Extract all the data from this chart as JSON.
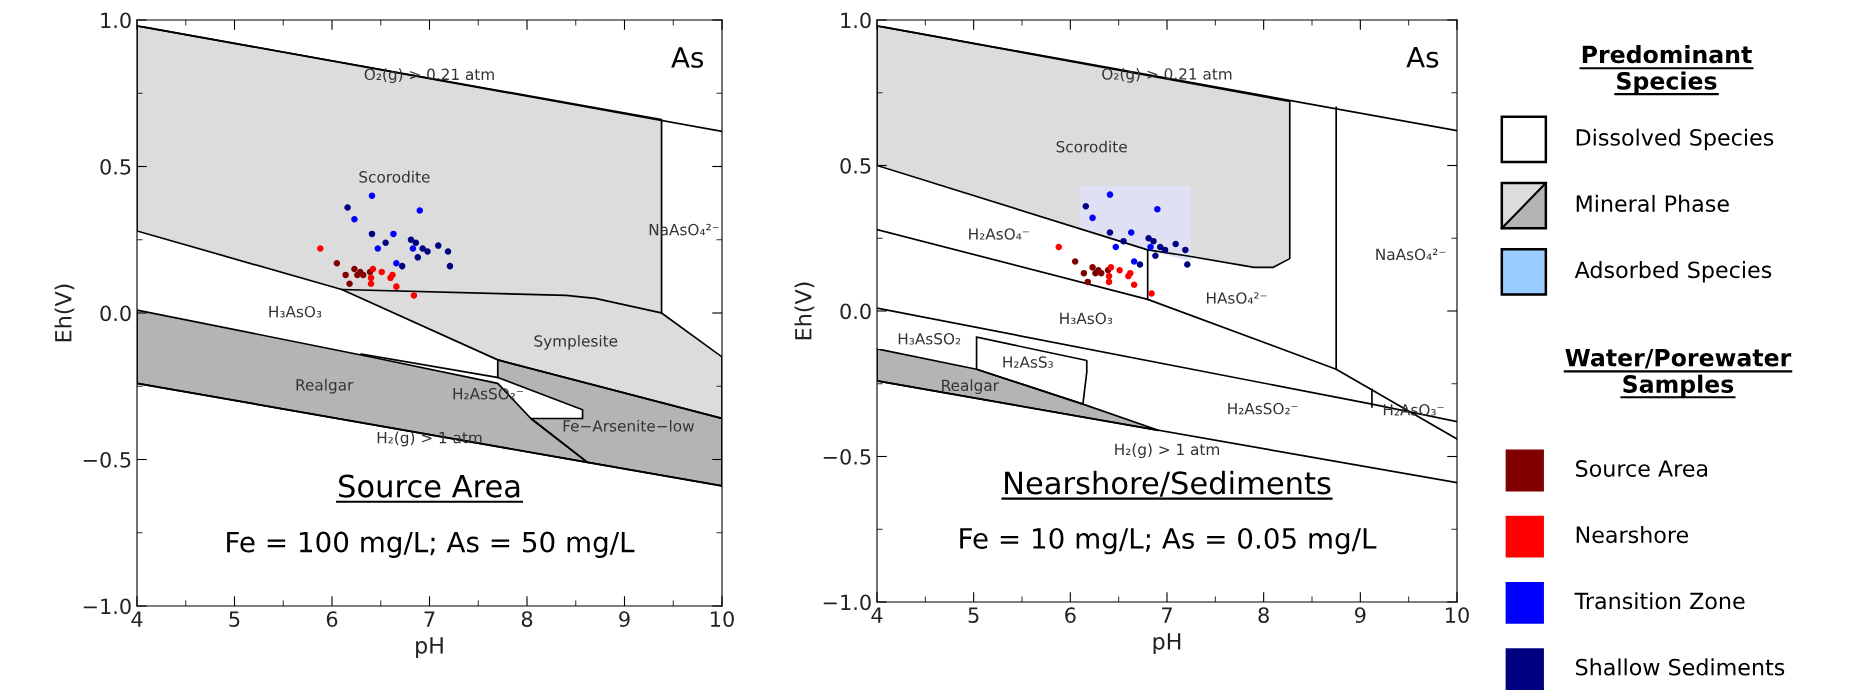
{
  "chart_data": [
    {
      "type": "scatter",
      "subtitle": "Source Area",
      "xlabel": "pH",
      "ylabel": "Eh(V)",
      "xlim": [
        4,
        10
      ],
      "ylim": [
        -1,
        1
      ],
      "xticks": [
        4,
        5,
        6,
        7,
        8,
        9,
        10
      ],
      "yticks": [
        {
          "value": -1,
          "label": "−1.0"
        },
        {
          "value": -0.5,
          "label": "−0.5"
        },
        {
          "value": 0,
          "label": "0.0"
        },
        {
          "value": 0.5,
          "label": "0.5"
        },
        {
          "value": 1,
          "label": "1.0"
        }
      ],
      "grid": false,
      "legend": false,
      "series": [
        {
          "type": "area",
          "color": "#dcdcdc",
          "x": [
            4,
            9.38,
            9.38,
            10,
            10,
            7.7,
            6.1,
            4
          ],
          "values": [
            0.98,
            0.66,
            0.0,
            -0.15,
            -0.36,
            -0.16,
            0.08,
            0.28
          ]
        },
        {
          "type": "area",
          "color": "#b4b4b4",
          "x": [
            7.7,
            10,
            10,
            8.62,
            8.04,
            8.57,
            8.57,
            7.7
          ],
          "values": [
            -0.16,
            -0.36,
            -0.59,
            -0.51,
            -0.36,
            -0.36,
            -0.33,
            -0.22
          ]
        },
        {
          "type": "area",
          "color": "#b4b4b4",
          "x": [
            4,
            6.4,
            7.7,
            8.04,
            8.62,
            4
          ],
          "values": [
            0.01,
            -0.15,
            -0.24,
            -0.36,
            -0.51,
            -0.24
          ]
        },
        {
          "type": "line",
          "color": "#000000",
          "x": [
            4,
            10
          ],
          "values": [
            0.98,
            0.62
          ]
        },
        {
          "type": "line",
          "color": "#000000",
          "x": [
            6.1,
            8.4,
            8.7,
            9.38
          ],
          "values": [
            0.08,
            0.06,
            0.05,
            0.0
          ]
        },
        {
          "type": "line",
          "color": "#000000",
          "x": [
            6.3,
            7.7
          ],
          "values": [
            -0.14,
            -0.22
          ]
        },
        {
          "type": "line",
          "color": "#000000",
          "x": [
            4,
            10
          ],
          "values": [
            -0.24,
            -0.59
          ]
        },
        {
          "type": "scatter",
          "color": "#0000ff",
          "x": [
            6.41,
            6.23,
            6.9,
            6.63,
            6.47,
            6.83,
            6.66
          ],
          "values": [
            0.4,
            0.32,
            0.35,
            0.27,
            0.22,
            0.22,
            0.17
          ]
        },
        {
          "type": "scatter",
          "color": "#000080",
          "x": [
            6.16,
            6.41,
            6.55,
            6.81,
            6.86,
            6.93,
            6.98,
            7.09,
            7.19,
            6.88,
            6.72,
            7.21
          ],
          "values": [
            0.36,
            0.27,
            0.24,
            0.25,
            0.24,
            0.22,
            0.21,
            0.23,
            0.21,
            0.19,
            0.16,
            0.16
          ]
        },
        {
          "type": "scatter",
          "color": "#800000",
          "x": [
            6.05,
            6.23,
            6.14,
            6.29,
            6.32,
            6.39,
            6.26,
            6.18
          ],
          "values": [
            0.17,
            0.15,
            0.13,
            0.14,
            0.13,
            0.14,
            0.13,
            0.1
          ]
        },
        {
          "type": "scatter",
          "color": "#ff0000",
          "x": [
            5.88,
            6.42,
            6.4,
            6.4,
            6.51,
            6.62,
            6.6,
            6.66,
            6.84
          ],
          "values": [
            0.22,
            0.15,
            0.12,
            0.1,
            0.14,
            0.13,
            0.12,
            0.09,
            0.06
          ]
        }
      ],
      "annotations": [
        "As",
        "Fe = 100 mg/L; As = 50 mg/L",
        "O₂(g) > 0.21 atm",
        "Scorodite",
        "NaAsO₄²⁻",
        "H₃AsO₃",
        "Symplesite",
        "Realgar",
        "H₂AsSO₂⁻",
        "Fe−Arsenite−low",
        "H₂(g) > 1 atm"
      ]
    },
    {
      "type": "scatter",
      "subtitle": "Nearshore/Sediments",
      "xlabel": "pH",
      "ylabel": "Eh(V)",
      "xlim": [
        4,
        10
      ],
      "ylim": [
        -1,
        1
      ],
      "xticks": [
        4,
        5,
        6,
        7,
        8,
        9,
        10
      ],
      "yticks": [
        {
          "value": -1,
          "label": "−1.0"
        },
        {
          "value": -0.5,
          "label": "−0.5"
        },
        {
          "value": 0,
          "label": "0.0"
        },
        {
          "value": 0.5,
          "label": "0.5"
        },
        {
          "value": 1,
          "label": "1.0"
        }
      ],
      "grid": false,
      "legend": false,
      "series": [
        {
          "type": "area",
          "color": "#dcdcdc",
          "x": [
            4,
            8.27,
            8.27,
            8.1,
            7.9,
            7.2,
            6.8,
            4
          ],
          "values": [
            0.98,
            0.72,
            0.18,
            0.15,
            0.15,
            0.19,
            0.21,
            0.5
          ]
        },
        {
          "type": "area",
          "color": "#dfe0f3",
          "line_style": "none",
          "x": [
            6.1,
            7.25,
            7.25,
            6.8,
            6.1
          ],
          "values": [
            0.43,
            0.43,
            0.17,
            0.21,
            0.29
          ]
        },
        {
          "type": "area",
          "color": "#b4b4b4",
          "x": [
            4,
            5.03,
            6.13,
            6.91,
            4
          ],
          "values": [
            -0.13,
            -0.2,
            -0.32,
            -0.41,
            -0.24
          ]
        },
        {
          "type": "area",
          "color": "#ffffff",
          "x": [
            5.03,
            6.17,
            6.17,
            6.13,
            5.03
          ],
          "values": [
            -0.09,
            -0.17,
            -0.21,
            -0.32,
            -0.2
          ]
        },
        {
          "type": "line",
          "color": "#000000",
          "x": [
            4,
            10
          ],
          "values": [
            0.98,
            0.62
          ]
        },
        {
          "type": "line",
          "color": "#000000",
          "x": [
            4,
            6.8,
            8.75,
            10
          ],
          "values": [
            0.28,
            0.04,
            -0.2,
            -0.44
          ]
        },
        {
          "type": "line",
          "color": "#000000",
          "x": [
            6.8,
            6.8
          ],
          "values": [
            0.21,
            0.04
          ]
        },
        {
          "type": "line",
          "color": "#000000",
          "x": [
            8.75,
            8.75
          ],
          "values": [
            0.7,
            -0.2
          ]
        },
        {
          "type": "line",
          "color": "#000000",
          "x": [
            4,
            9.12,
            10
          ],
          "values": [
            0.01,
            -0.32,
            -0.38
          ]
        },
        {
          "type": "line",
          "color": "#000000",
          "x": [
            9.12,
            9.12
          ],
          "values": [
            -0.27,
            -0.33
          ]
        },
        {
          "type": "line",
          "color": "#000000",
          "x": [
            4,
            10
          ],
          "values": [
            -0.24,
            -0.59
          ]
        },
        {
          "type": "scatter",
          "color": "#0000ff",
          "x": [
            6.41,
            6.23,
            6.9,
            6.63,
            6.47,
            6.83,
            6.66
          ],
          "values": [
            0.4,
            0.32,
            0.35,
            0.27,
            0.22,
            0.22,
            0.17
          ]
        },
        {
          "type": "scatter",
          "color": "#000080",
          "x": [
            6.16,
            6.41,
            6.55,
            6.81,
            6.86,
            6.93,
            6.98,
            7.09,
            7.19,
            6.88,
            6.72,
            7.21
          ],
          "values": [
            0.36,
            0.27,
            0.24,
            0.25,
            0.24,
            0.22,
            0.21,
            0.23,
            0.21,
            0.19,
            0.16,
            0.16
          ]
        },
        {
          "type": "scatter",
          "color": "#800000",
          "x": [
            6.05,
            6.23,
            6.14,
            6.29,
            6.32,
            6.39,
            6.26,
            6.18
          ],
          "values": [
            0.17,
            0.15,
            0.13,
            0.14,
            0.13,
            0.14,
            0.13,
            0.1
          ]
        },
        {
          "type": "scatter",
          "color": "#ff0000",
          "x": [
            5.88,
            6.42,
            6.4,
            6.4,
            6.51,
            6.62,
            6.6,
            6.66,
            6.84
          ],
          "values": [
            0.22,
            0.15,
            0.12,
            0.1,
            0.14,
            0.13,
            0.12,
            0.09,
            0.06
          ]
        }
      ],
      "annotations": [
        "As",
        "Fe = 10 mg/L; As = 0.05 mg/L",
        "O₂(g) > 0.21 atm",
        "Scorodite",
        "H₂AsO₄⁻",
        "NaAsO₄²⁻",
        "HAsO₄²⁻",
        "H₃AsO₃",
        "H₃AsSO₂",
        "H₂AsS₃",
        "Realgar",
        "H₂AsSO₂⁻",
        "H₂AsO₃⁻",
        "H₂(g) > 1 atm"
      ]
    },
    {
      "type": "other",
      "title": "Predominant Species",
      "subtitle": "Water/Porewater Samples",
      "categories": [
        "Dissolved Species",
        "Mineral Phase",
        "Adsorbed Species",
        "Source Area",
        "Nearshore",
        "Transition Zone",
        "Shallow Sediments"
      ],
      "colors": [
        "#ffffff",
        [
          "#dcdcdc",
          "#b4b4b4"
        ],
        "#99ccff",
        "#800000",
        "#ff0000",
        "#0000ff",
        "#000080"
      ]
    }
  ]
}
